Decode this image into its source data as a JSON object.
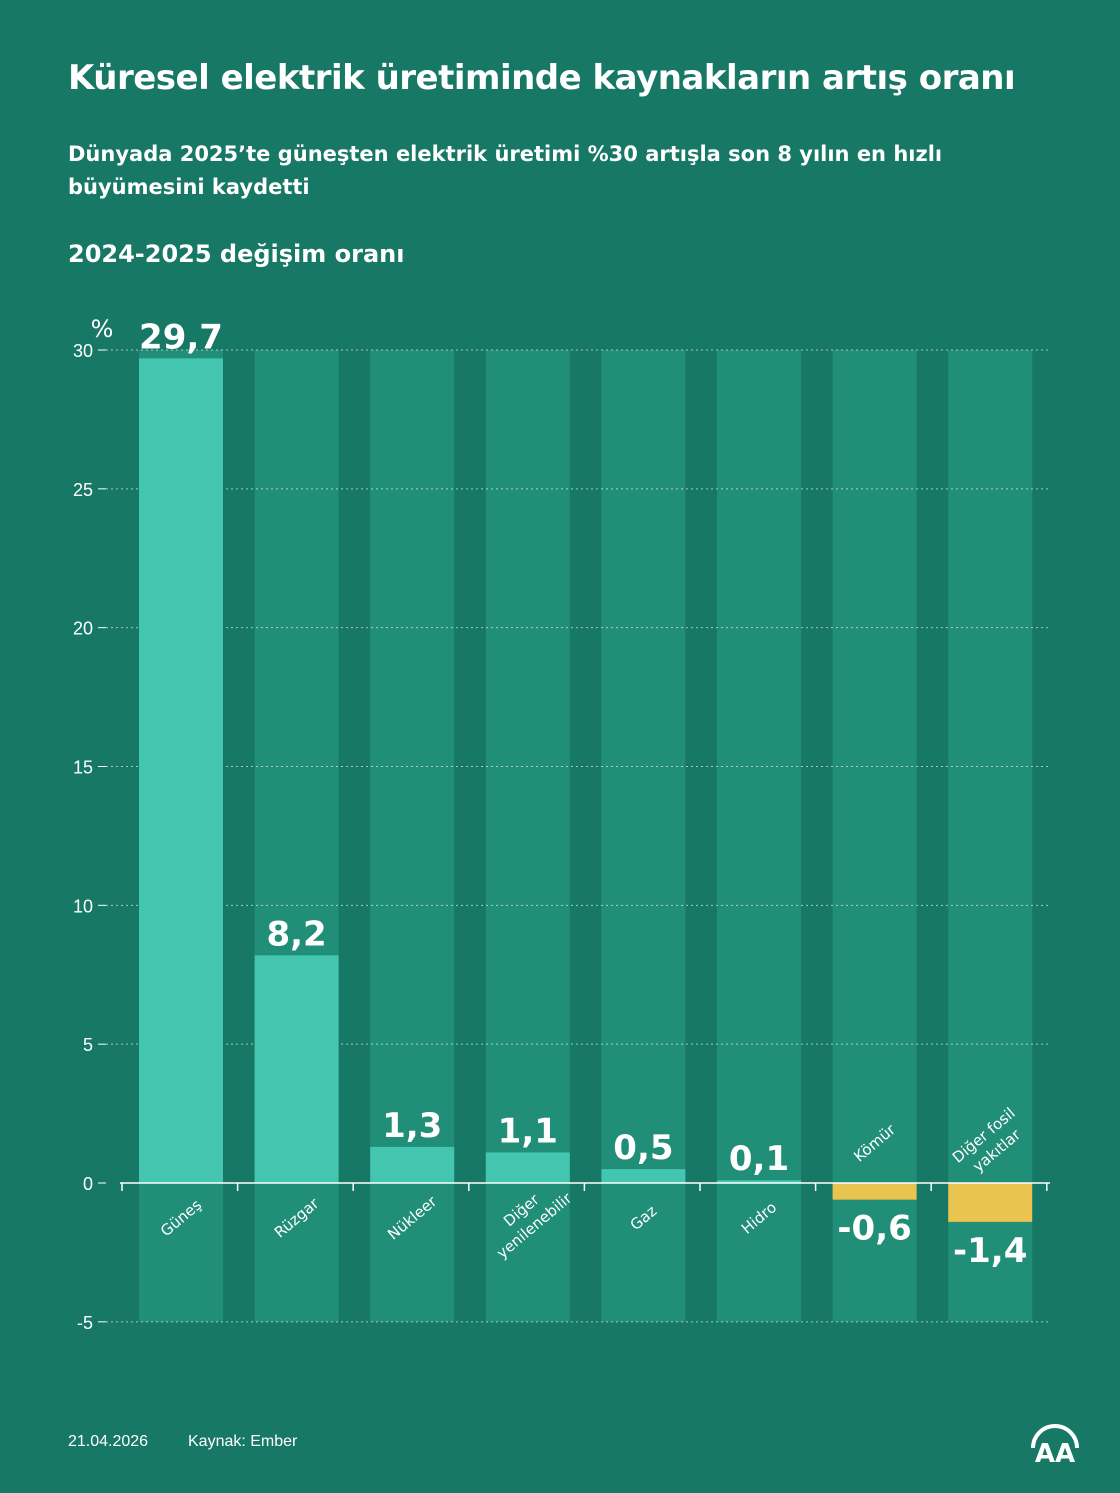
{
  "title": "Küresel elektrik üretiminde kaynakların artış oranı",
  "subtitle": "Dünyada 2025’te güneşten elektrik üretimi %30 artışla son 8 yılın en hızlı büyümesini kaydetti",
  "section_title": "2024-2025 değişim oranı",
  "footer": {
    "date": "21.04.2026",
    "source": "Kaynak: Ember"
  },
  "logo": {
    "text": "AA"
  },
  "colors": {
    "background": "#177865",
    "column_bg": "#218e77",
    "positive": "#44c5b0",
    "negative": "#e9c44e"
  },
  "chart_data": {
    "type": "bar",
    "title": "2024-2025 değişim oranı",
    "ylabel": "%",
    "xlabel": "",
    "ylim": [
      -5,
      30
    ],
    "yticks": [
      -5,
      0,
      5,
      10,
      15,
      20,
      25,
      30
    ],
    "grid": true,
    "categories": [
      "Güneş",
      "Rüzgar",
      "Nükleer",
      "Diğer yenilenebilir",
      "Gaz",
      "Hidro",
      "Kömür",
      "Diğer fosil yakıtlar"
    ],
    "category_lines": [
      [
        "Güneş"
      ],
      [
        "Rüzgar"
      ],
      [
        "Nükleer"
      ],
      [
        "Diğer",
        "yenilenebilir"
      ],
      [
        "Gaz"
      ],
      [
        "Hidro"
      ],
      [
        "Kömür"
      ],
      [
        "Diğer fosil",
        "yakıtlar"
      ]
    ],
    "values": [
      29.7,
      8.2,
      1.3,
      1.1,
      0.5,
      0.1,
      -0.6,
      -1.4
    ],
    "value_labels": [
      "29,7",
      "8,2",
      "1,3",
      "1,1",
      "0,5",
      "0,1",
      "-0,6",
      "-1,4"
    ]
  }
}
